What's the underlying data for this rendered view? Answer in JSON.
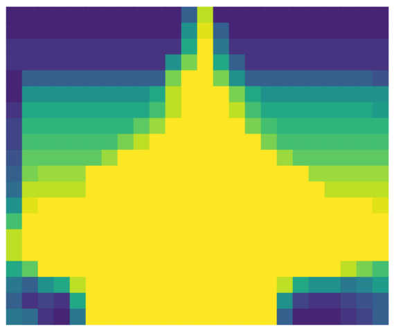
{
  "chart_data": {
    "type": "heatmap",
    "color": "viridis",
    "tick_labels": false,
    "zlim": [
      0,
      1
    ],
    "z": [
      [
        0.1,
        0.1,
        0.1,
        0.1,
        0.1,
        0.1,
        0.1,
        0.1,
        0.1,
        0.1,
        0.1,
        0.3,
        0.9,
        0.1,
        0.1,
        0.1,
        0.1,
        0.1,
        0.1,
        0.1,
        0.1,
        0.1,
        0.1,
        0.1
      ],
      [
        0.1,
        0.1,
        0.1,
        0.1,
        0.1,
        0.1,
        0.1,
        0.1,
        0.1,
        0.1,
        0.1,
        0.5,
        0.95,
        0.3,
        0.1,
        0.1,
        0.1,
        0.1,
        0.1,
        0.1,
        0.1,
        0.1,
        0.1,
        0.1
      ],
      [
        0.15,
        0.15,
        0.15,
        0.15,
        0.15,
        0.15,
        0.15,
        0.15,
        0.15,
        0.15,
        0.15,
        0.6,
        1,
        0.4,
        0.15,
        0.15,
        0.15,
        0.15,
        0.15,
        0.15,
        0.15,
        0.15,
        0.15,
        0.15
      ],
      [
        0.15,
        0.15,
        0.15,
        0.15,
        0.15,
        0.15,
        0.15,
        0.15,
        0.15,
        0.15,
        0.5,
        0.8,
        1,
        0.6,
        0.3,
        0.15,
        0.15,
        0.15,
        0.15,
        0.15,
        0.15,
        0.15,
        0.15,
        0.15
      ],
      [
        0.1,
        0.3,
        0.3,
        0.3,
        0.3,
        0.3,
        0.3,
        0.3,
        0.3,
        0.3,
        0.8,
        1,
        1,
        0.8,
        0.5,
        0.3,
        0.3,
        0.3,
        0.3,
        0.3,
        0.3,
        0.3,
        0.3,
        0.25
      ],
      [
        0.1,
        0.5,
        0.5,
        0.5,
        0.5,
        0.5,
        0.5,
        0.5,
        0.5,
        0.6,
        0.9,
        1,
        1,
        1,
        0.8,
        0.6,
        0.5,
        0.5,
        0.5,
        0.5,
        0.5,
        0.5,
        0.5,
        0.5
      ],
      [
        0.15,
        0.6,
        0.6,
        0.6,
        0.6,
        0.6,
        0.6,
        0.6,
        0.6,
        0.7,
        0.9,
        1,
        1,
        1,
        0.9,
        0.7,
        0.6,
        0.6,
        0.6,
        0.6,
        0.6,
        0.6,
        0.6,
        0.55
      ],
      [
        0.2,
        0.65,
        0.65,
        0.65,
        0.65,
        0.65,
        0.65,
        0.65,
        0.75,
        0.85,
        1,
        1,
        1,
        1,
        1,
        0.8,
        0.7,
        0.65,
        0.65,
        0.65,
        0.65,
        0.65,
        0.65,
        0.65
      ],
      [
        0.2,
        0.7,
        0.7,
        0.7,
        0.7,
        0.7,
        0.7,
        0.8,
        0.9,
        1,
        1,
        1,
        1,
        1,
        1,
        1,
        0.8,
        0.7,
        0.7,
        0.7,
        0.7,
        0.7,
        0.7,
        0.7
      ],
      [
        0.25,
        0.75,
        0.75,
        0.75,
        0.75,
        0.75,
        0.85,
        1,
        1,
        1,
        1,
        1,
        1,
        1,
        1,
        1,
        1,
        0.85,
        0.75,
        0.75,
        0.75,
        0.75,
        0.75,
        0.75
      ],
      [
        0.3,
        0.8,
        0.85,
        0.85,
        0.85,
        1,
        1,
        1,
        1,
        1,
        1,
        1,
        1,
        1,
        1,
        1,
        1,
        1,
        1,
        0.85,
        0.85,
        0.85,
        0.85,
        0.85
      ],
      [
        0.35,
        0.9,
        0.9,
        0.9,
        0.9,
        1,
        1,
        1,
        1,
        1,
        1,
        1,
        1,
        1,
        1,
        1,
        1,
        1,
        1,
        1,
        0.9,
        0.9,
        0.9,
        0.9
      ],
      [
        0.5,
        0.95,
        1,
        1,
        1,
        1,
        1,
        1,
        1,
        1,
        1,
        1,
        1,
        1,
        1,
        1,
        1,
        1,
        1,
        1,
        1,
        1,
        1,
        0.95
      ],
      [
        0.7,
        1,
        1,
        1,
        1,
        1,
        1,
        1,
        1,
        1,
        1,
        1,
        1,
        1,
        1,
        1,
        1,
        1,
        1,
        1,
        1,
        1,
        1,
        1
      ],
      [
        0.9,
        1,
        1,
        1,
        1,
        1,
        1,
        1,
        1,
        1,
        1,
        1,
        1,
        1,
        1,
        1,
        1,
        1,
        1,
        1,
        1,
        1,
        1,
        1
      ],
      [
        0.9,
        1,
        1,
        1,
        1,
        1,
        1,
        1,
        1,
        1,
        1,
        1,
        1,
        1,
        1,
        1,
        1,
        1,
        1,
        1,
        1,
        1,
        1,
        1
      ],
      [
        0.6,
        0.75,
        1,
        1,
        1,
        1,
        1,
        1,
        1,
        1,
        1,
        1,
        1,
        1,
        1,
        1,
        1,
        1,
        1,
        1,
        1,
        0.9,
        0.8,
        0.7
      ],
      [
        0.4,
        0.3,
        0.5,
        0.6,
        0.9,
        1,
        1,
        1,
        1,
        1,
        1,
        1,
        1,
        1,
        1,
        1,
        1,
        0.9,
        0.6,
        0.5,
        0.5,
        0.4,
        0.45,
        0.55
      ],
      [
        0.3,
        0.15,
        0.2,
        0.15,
        0.6,
        1,
        1,
        1,
        1,
        1,
        1,
        1,
        1,
        1,
        1,
        1,
        1,
        0.5,
        0.2,
        0.15,
        0.15,
        0.2,
        0.25,
        0.3
      ],
      [
        0.4,
        0.35,
        0.15,
        0.1,
        0.4,
        1,
        1,
        1,
        1,
        1,
        1,
        1,
        1,
        1,
        1,
        1,
        1,
        0.3,
        0.1,
        0.1,
        0.1,
        0.15,
        0.2,
        0.3
      ]
    ]
  }
}
